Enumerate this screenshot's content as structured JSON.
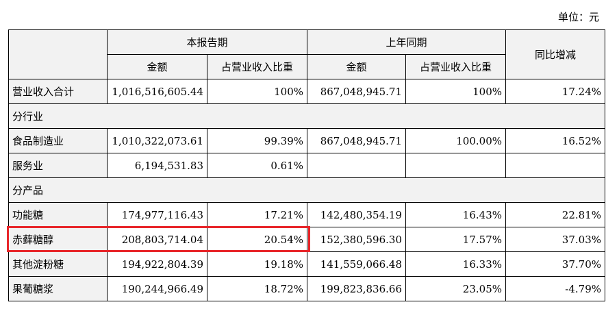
{
  "unit_label": "单位：元",
  "header": {
    "current_period": "本报告期",
    "prior_period": "上年同期",
    "yoy_change": "同比增减",
    "amount": "金额",
    "revenue_share": "占营业收入比重"
  },
  "rows": {
    "total": {
      "label": "营业收入合计",
      "cur_amt": "1,016,516,605.44",
      "cur_pct": "100%",
      "pri_amt": "867,048,945.71",
      "pri_pct": "100%",
      "yoy": "17.24%"
    },
    "section_industry": "分行业",
    "food_mfg": {
      "label": "食品制造业",
      "cur_amt": "1,010,322,073.61",
      "cur_pct": "99.39%",
      "pri_amt": "867,048,945.71",
      "pri_pct": "100.00%",
      "yoy": "16.52%"
    },
    "services": {
      "label": "服务业",
      "cur_amt": "6,194,531.83",
      "cur_pct": "0.61%",
      "pri_amt": "",
      "pri_pct": "",
      "yoy": ""
    },
    "section_product": "分产品",
    "functional_sugar": {
      "label": "功能糖",
      "cur_amt": "174,977,116.43",
      "cur_pct": "17.21%",
      "pri_amt": "142,480,354.19",
      "pri_pct": "16.43%",
      "yoy": "22.81%"
    },
    "erythritol": {
      "label": "赤藓糖醇",
      "cur_amt": "208,803,714.04",
      "cur_pct": "20.54%",
      "pri_amt": "152,380,596.30",
      "pri_pct": "17.57%",
      "yoy": "37.03%"
    },
    "other_starch_sugar": {
      "label": "其他淀粉糖",
      "cur_amt": "194,922,804.39",
      "cur_pct": "19.18%",
      "pri_amt": "141,559,066.48",
      "pri_pct": "16.33%",
      "yoy": "37.70%"
    },
    "fructose_syrup": {
      "label": "果葡糖浆",
      "cur_amt": "190,244,966.49",
      "cur_pct": "18.72%",
      "pri_amt": "199,823,836.66",
      "pri_pct": "23.05%",
      "yoy": "-4.79%"
    }
  },
  "highlight_color": "#e8262a"
}
